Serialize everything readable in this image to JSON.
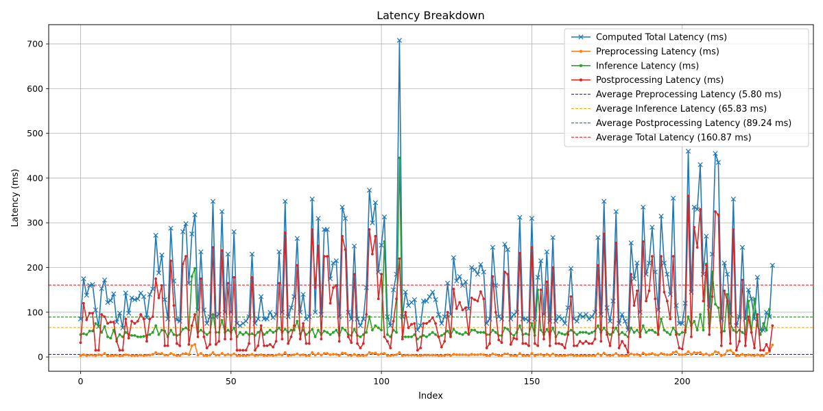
{
  "chart_data": {
    "type": "line",
    "title": "Latency Breakdown",
    "xlabel": "Index",
    "ylabel": "Latency (ms)",
    "xlim": [
      -10.6,
      243.6
    ],
    "ylim": [
      -32,
      743
    ],
    "xticks": [
      0,
      50,
      100,
      150,
      200
    ],
    "yticks": [
      0,
      100,
      200,
      300,
      400,
      500,
      600,
      700
    ],
    "grid": true,
    "legend_position": "upper-right",
    "series": [
      {
        "name": "Computed Total Latency (ms)",
        "color": "#1f77b4",
        "marker": "x",
        "values": [
          85,
          175,
          138,
          160,
          162,
          105,
          68,
          153,
          172,
          122,
          126,
          141,
          78,
          98,
          65,
          143,
          98,
          132,
          128,
          130,
          143,
          135,
          88,
          140,
          152,
          272,
          188,
          228,
          128,
          85,
          288,
          170,
          83,
          80,
          280,
          298,
          165,
          275,
          318,
          105,
          235,
          105,
          75,
          90,
          348,
          90,
          95,
          325,
          100,
          230,
          100,
          280,
          75,
          70,
          75,
          80,
          90,
          230,
          75,
          85,
          135,
          85,
          85,
          100,
          88,
          95,
          235,
          100,
          348,
          90,
          110,
          135,
          265,
          100,
          140,
          85,
          90,
          353,
          100,
          310,
          95,
          285,
          285,
          175,
          210,
          215,
          90,
          335,
          310,
          100,
          85,
          248,
          85,
          70,
          85,
          155,
          373,
          300,
          345,
          190,
          250,
          313,
          90,
          70,
          150,
          185,
          708,
          90,
          145,
          115,
          122,
          128,
          60,
          70,
          125,
          125,
          135,
          145,
          128,
          95,
          75,
          90,
          165,
          95,
          222,
          170,
          180,
          160,
          168,
          108,
          200,
          195,
          185,
          207,
          190,
          75,
          85,
          245,
          160,
          90,
          85,
          252,
          240,
          85,
          95,
          100,
          312,
          85,
          85,
          80,
          310,
          85,
          178,
          215,
          95,
          235,
          80,
          267,
          80,
          90,
          85,
          75,
          110,
          198,
          85,
          80,
          95,
          90,
          95,
          85,
          90,
          100,
          267,
          95,
          348,
          110,
          80,
          125,
          325,
          75,
          95,
          80,
          60,
          255,
          175,
          210,
          100,
          335,
          185,
          210,
          290,
          190,
          105,
          315,
          210,
          185,
          140,
          355,
          115,
          75,
          75,
          120,
          460,
          145,
          335,
          330,
          430,
          185,
          270,
          110,
          230,
          455,
          435,
          85,
          210,
          185,
          95,
          353,
          70,
          90,
          245,
          85,
          150,
          130,
          85,
          178,
          60,
          60,
          100,
          90,
          205
        ]
      },
      {
        "name": "Preprocessing Latency (ms)",
        "color": "#ff7f0e",
        "marker": "o",
        "values": [
          3,
          5,
          3,
          4,
          4,
          3,
          5,
          4,
          8,
          2,
          3,
          3,
          4,
          2,
          3,
          5,
          4,
          3,
          3,
          3,
          4,
          3,
          4,
          4,
          6,
          10,
          7,
          8,
          4,
          4,
          8,
          5,
          3,
          3,
          7,
          8,
          5,
          25,
          28,
          4,
          8,
          3,
          3,
          4,
          10,
          4,
          4,
          8,
          4,
          6,
          4,
          7,
          3,
          3,
          3,
          3,
          4,
          6,
          3,
          4,
          5,
          3,
          3,
          4,
          3,
          4,
          6,
          4,
          10,
          3,
          4,
          5,
          7,
          4,
          5,
          3,
          3,
          10,
          4,
          8,
          4,
          8,
          8,
          5,
          6,
          6,
          3,
          9,
          8,
          4,
          3,
          6,
          3,
          3,
          3,
          4,
          10,
          8,
          9,
          5,
          7,
          8,
          3,
          3,
          4,
          5,
          10,
          3,
          4,
          4,
          4,
          4,
          3,
          3,
          4,
          4,
          4,
          4,
          4,
          3,
          3,
          3,
          5,
          3,
          6,
          5,
          5,
          5,
          5,
          4,
          6,
          5,
          5,
          6,
          5,
          3,
          3,
          7,
          5,
          3,
          3,
          7,
          7,
          3,
          3,
          3,
          8,
          3,
          3,
          3,
          8,
          3,
          5,
          6,
          3,
          6,
          3,
          7,
          3,
          3,
          3,
          3,
          4,
          5,
          3,
          3,
          3,
          3,
          3,
          3,
          3,
          3,
          7,
          3,
          9,
          4,
          3,
          4,
          8,
          3,
          3,
          3,
          3,
          7,
          5,
          6,
          3,
          9,
          5,
          6,
          8,
          5,
          4,
          8,
          6,
          5,
          5,
          10,
          12,
          5,
          5,
          6,
          12,
          6,
          10,
          9,
          10,
          5,
          7,
          4,
          6,
          12,
          10,
          3,
          5,
          14,
          15,
          9,
          3,
          3,
          6,
          3,
          5,
          4,
          3,
          5,
          3,
          3,
          8,
          12,
          27
        ]
      },
      {
        "name": "Inference Latency (ms)",
        "color": "#2ca02c",
        "marker": "o",
        "values": [
          50,
          52,
          50,
          58,
          58,
          75,
          70,
          55,
          68,
          45,
          42,
          60,
          40,
          50,
          45,
          55,
          50,
          48,
          48,
          45,
          45,
          46,
          48,
          50,
          55,
          70,
          50,
          60,
          58,
          45,
          60,
          50,
          48,
          50,
          62,
          65,
          60,
          180,
          198,
          55,
          60,
          55,
          50,
          55,
          95,
          55,
          55,
          82,
          55,
          60,
          55,
          65,
          45,
          55,
          50,
          55,
          50,
          52,
          48,
          55,
          60,
          50,
          55,
          60,
          55,
          58,
          65,
          55,
          62,
          55,
          60,
          60,
          80,
          52,
          60,
          50,
          55,
          62,
          45,
          60,
          50,
          58,
          55,
          50,
          55,
          60,
          48,
          65,
          60,
          50,
          48,
          62,
          48,
          45,
          50,
          55,
          90,
          60,
          70,
          65,
          60,
          258,
          50,
          45,
          60,
          55,
          445,
          45,
          45,
          45,
          45,
          50,
          40,
          45,
          48,
          45,
          50,
          55,
          50,
          45,
          48,
          52,
          58,
          48,
          62,
          55,
          52,
          50,
          55,
          50,
          60,
          60,
          55,
          55,
          55,
          50,
          50,
          60,
          55,
          48,
          48,
          65,
          62,
          52,
          48,
          55,
          70,
          50,
          52,
          50,
          75,
          48,
          150,
          60,
          50,
          62,
          50,
          65,
          45,
          55,
          52,
          50,
          55,
          60,
          55,
          50,
          55,
          55,
          55,
          52,
          55,
          58,
          70,
          55,
          65,
          55,
          50,
          55,
          65,
          50,
          55,
          50,
          45,
          65,
          55,
          60,
          50,
          70,
          55,
          60,
          60,
          55,
          52,
          85,
          60,
          55,
          50,
          65,
          55,
          50,
          55,
          55,
          90,
          70,
          80,
          60,
          95,
          60,
          208,
          75,
          190,
          118,
          110,
          55,
          58,
          140,
          75,
          60,
          55,
          60,
          55,
          50,
          125,
          55,
          130,
          70,
          50,
          75,
          60,
          107
        ]
      },
      {
        "name": "Postprocessing Latency (ms)",
        "color": "#d62728",
        "marker": "o",
        "values": [
          32,
          120,
          83,
          98,
          98,
          15,
          15,
          95,
          90,
          75,
          78,
          78,
          35,
          15,
          15,
          85,
          42,
          80,
          75,
          80,
          95,
          85,
          35,
          85,
          90,
          175,
          132,
          160,
          25,
          25,
          215,
          115,
          30,
          25,
          208,
          225,
          28,
          70,
          95,
          45,
          175,
          45,
          20,
          28,
          245,
          28,
          35,
          238,
          40,
          165,
          40,
          178,
          15,
          15,
          15,
          15,
          30,
          178,
          15,
          25,
          70,
          25,
          25,
          28,
          22,
          35,
          165,
          40,
          278,
          30,
          45,
          70,
          205,
          40,
          75,
          30,
          30,
          285,
          155,
          248,
          40,
          225,
          225,
          120,
          155,
          160,
          35,
          270,
          240,
          45,
          32,
          185,
          30,
          20,
          30,
          95,
          285,
          230,
          270,
          130,
          185,
          45,
          35,
          20,
          80,
          130,
          220,
          40,
          100,
          65,
          73,
          75,
          15,
          20,
          75,
          75,
          80,
          88,
          75,
          45,
          22,
          35,
          100,
          45,
          152,
          108,
          122,
          105,
          110,
          52,
          132,
          128,
          125,
          146,
          130,
          20,
          30,
          180,
          100,
          38,
          32,
          190,
          185,
          28,
          42,
          40,
          232,
          30,
          30,
          25,
          245,
          30,
          25,
          150,
          40,
          168,
          25,
          200,
          30,
          30,
          28,
          20,
          50,
          135,
          25,
          25,
          35,
          30,
          35,
          30,
          30,
          40,
          205,
          35,
          275,
          50,
          25,
          65,
          255,
          20,
          35,
          25,
          10,
          185,
          115,
          148,
          45,
          258,
          125,
          148,
          225,
          130,
          50,
          225,
          145,
          125,
          85,
          225,
          50,
          20,
          18,
          60,
          360,
          45,
          290,
          245,
          330,
          125,
          205,
          50,
          135,
          325,
          318,
          25,
          148,
          125,
          30,
          285,
          15,
          35,
          172,
          25,
          90,
          55,
          20,
          95,
          15,
          15,
          28,
          15,
          70
        ]
      }
    ],
    "averages": [
      {
        "name": "Average Preprocessing Latency (5.80 ms)",
        "value": 5.8,
        "color": "#0000ff"
      },
      {
        "name": "Average Inference Latency (65.83 ms)",
        "value": 65.83,
        "color": "#ffa500"
      },
      {
        "name": "Average Postprocessing Latency (89.24 ms)",
        "value": 89.24,
        "color": "#008000"
      },
      {
        "name": "Average Total Latency (160.87 ms)",
        "value": 160.87,
        "color": "#ff0000"
      }
    ]
  }
}
